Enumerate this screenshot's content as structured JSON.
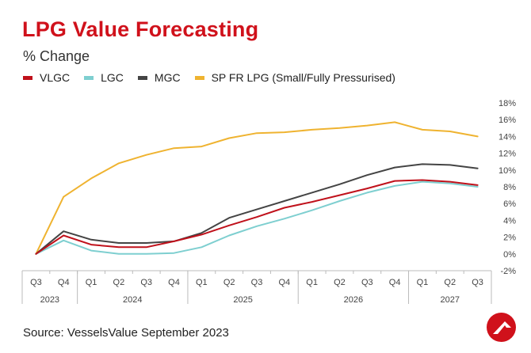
{
  "header": {
    "title": "LPG Value Forecasting",
    "subtitle": "% Change"
  },
  "footer": {
    "source": "Source: VesselsValue September 2023"
  },
  "colors": {
    "title": "#d0111b",
    "VLGC": "#c0111b",
    "LGC": "#7ecfd0",
    "MGC": "#444444",
    "SP FR LPG (Small/Fully Pressurised)": "#efb330"
  },
  "chart_data": {
    "type": "line",
    "title": "LPG Value Forecasting",
    "subtitle": "% Change",
    "x": [
      "Q3",
      "Q4",
      "Q1",
      "Q2",
      "Q3",
      "Q4",
      "Q1",
      "Q2",
      "Q3",
      "Q4",
      "Q1",
      "Q2",
      "Q3",
      "Q4",
      "Q1",
      "Q2",
      "Q3"
    ],
    "year_groups": [
      {
        "label": "2023",
        "span": 2
      },
      {
        "label": "2024",
        "span": 4
      },
      {
        "label": "2025",
        "span": 4
      },
      {
        "label": "2026",
        "span": 4
      },
      {
        "label": "2027",
        "span": 3
      }
    ],
    "y_ticks": [
      "18%",
      "16%",
      "14%",
      "12%",
      "10%",
      "8%",
      "6%",
      "4%",
      "2%",
      "0%",
      "-2%"
    ],
    "ylim": [
      -2,
      18
    ],
    "y_axis_position": "right",
    "grid": false,
    "legend_position": "top-left",
    "series": [
      {
        "name": "VLGC",
        "values": [
          0,
          2.2,
          1.1,
          0.8,
          0.8,
          1.5,
          2.3,
          3.4,
          4.4,
          5.5,
          6.2,
          7.0,
          7.8,
          8.7,
          8.8,
          8.6,
          8.2
        ]
      },
      {
        "name": "LGC",
        "values": [
          0,
          1.6,
          0.4,
          0.0,
          0.0,
          0.1,
          0.8,
          2.2,
          3.3,
          4.2,
          5.2,
          6.3,
          7.3,
          8.1,
          8.6,
          8.4,
          8.0
        ]
      },
      {
        "name": "MGC",
        "values": [
          0,
          2.7,
          1.7,
          1.3,
          1.3,
          1.5,
          2.5,
          4.3,
          5.3,
          6.3,
          7.3,
          8.3,
          9.4,
          10.3,
          10.7,
          10.6,
          10.2
        ]
      },
      {
        "name": "SP FR LPG (Small/Fully Pressurised)",
        "values": [
          0,
          6.8,
          9.0,
          10.8,
          11.8,
          12.6,
          12.8,
          13.8,
          14.4,
          14.5,
          14.8,
          15.0,
          15.3,
          15.7,
          14.8,
          14.6,
          14.0
        ]
      }
    ]
  }
}
